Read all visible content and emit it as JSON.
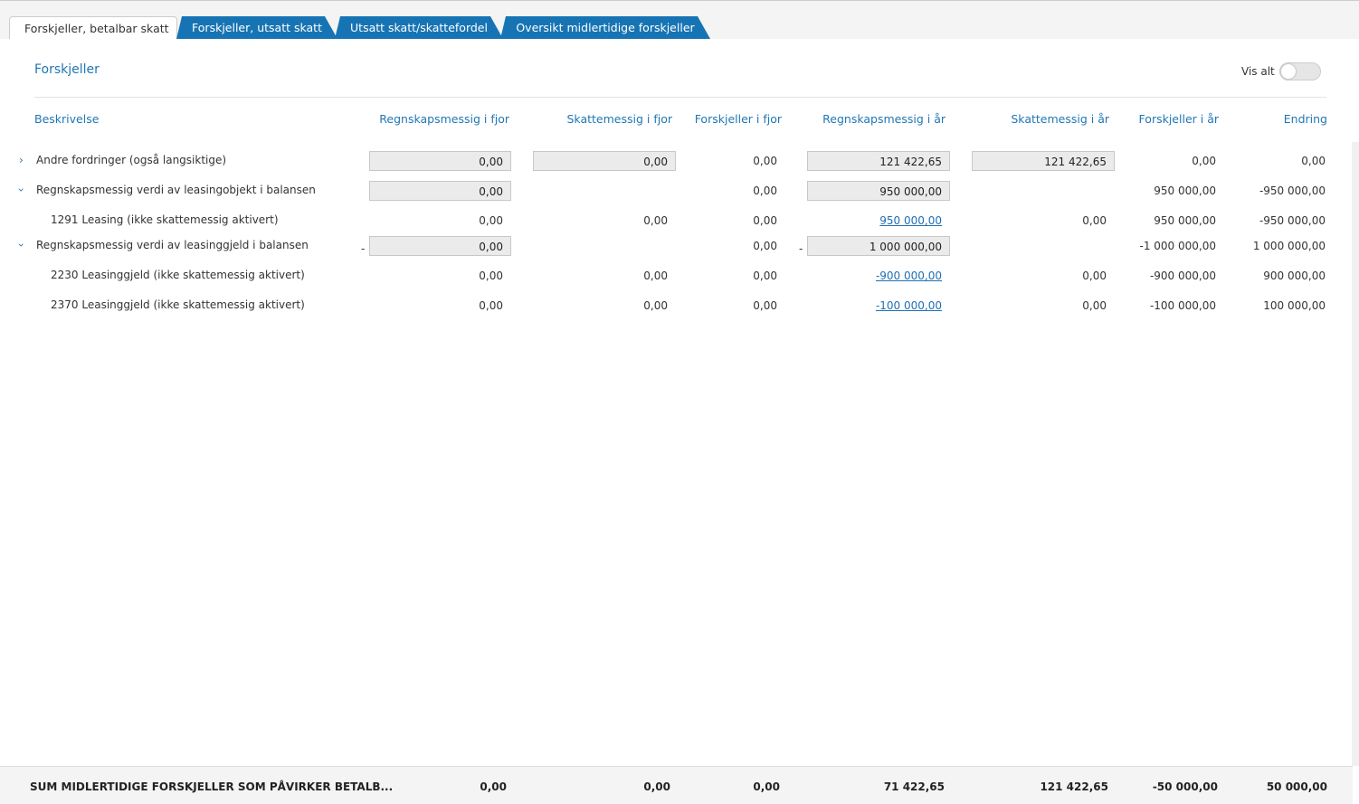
{
  "tabs": [
    "Forskjeller, betalbar skatt",
    "Forskjeller, utsatt skatt",
    "Utsatt skatt/skattefordel",
    "Oversikt midlertidige forskjeller"
  ],
  "active_tab": 0,
  "section_title": "Forskjeller",
  "toggle_label": "Vis alt",
  "table": {
    "columns": [
      "Beskrivelse",
      "Regnskapsmessig i fjor",
      "Skattemessig i fjor",
      "Forskjeller i fjor",
      "Regnskapsmessig i år",
      "Skattemessig i år",
      "Forskjeller i år",
      "Endring"
    ],
    "rows": [
      {
        "level": 0,
        "expanded": false,
        "cells": [
          "Andre fordringer (også langsiktige)",
          "0,00",
          "0,00",
          "0,00",
          "121 422,65",
          "121 422,65",
          "0,00",
          "0,00"
        ]
      },
      {
        "level": 0,
        "expanded": true,
        "cells": [
          "Regnskapsmessig verdi av leasingobjekt i balansen",
          "0,00",
          null,
          "0,00",
          "950 000,00",
          null,
          "950 000,00",
          "-950 000,00"
        ]
      },
      {
        "level": 1,
        "cells": [
          "1291 Leasing (ikke skattemessig aktivert)",
          "0,00",
          "0,00",
          "0,00",
          "950 000,00",
          "0,00",
          "950 000,00",
          "-950 000,00"
        ]
      },
      {
        "level": 0,
        "expanded": true,
        "sign": "-",
        "cells": [
          "Regnskapsmessig verdi av leasinggjeld i balansen",
          "0,00",
          null,
          "0,00",
          "1 000 000,00",
          null,
          "-1 000 000,00",
          "1 000 000,00"
        ]
      },
      {
        "level": 1,
        "cells": [
          "2230 Leasinggjeld (ikke skattemessig aktivert)",
          "0,00",
          "0,00",
          "0,00",
          "-900 000,00",
          "0,00",
          "-900 000,00",
          "900 000,00"
        ]
      },
      {
        "level": 1,
        "cells": [
          "2370 Leasinggjeld (ikke skattemessig aktivert)",
          "0,00",
          "0,00",
          "0,00",
          "-100 000,00",
          "0,00",
          "-100 000,00",
          "100 000,00"
        ]
      }
    ]
  },
  "footer": [
    "SUM MIDLERTIDIGE FORSKJELLER SOM PÅVIRKER BETALB...",
    "0,00",
    "0,00",
    "0,00",
    "71 422,65",
    "121 422,65",
    "-50 000,00",
    "50 000,00"
  ]
}
